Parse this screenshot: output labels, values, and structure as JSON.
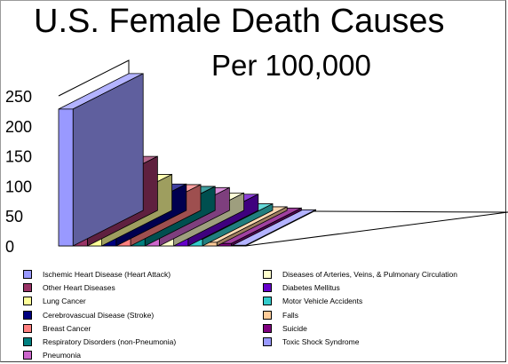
{
  "chart_data": {
    "type": "bar",
    "title": "U.S. Female Death Causes",
    "subtitle": "Per 100,000",
    "ylim": [
      0,
      250
    ],
    "yticks": [
      "0",
      "50",
      "100",
      "150",
      "200",
      "250"
    ],
    "series": [
      {
        "name": "Ischemic Heart Disease (Heart Attack)",
        "value": 228,
        "color": "#9999ff"
      },
      {
        "name": "Other Heart Diseases",
        "value": 90,
        "color": "#993366"
      },
      {
        "name": "Lung Cancer",
        "value": 60,
        "color": "#ffff99"
      },
      {
        "name": "Cerebrovascual Disease (Stroke)",
        "value": 44,
        "color": "#000080"
      },
      {
        "name": "Breast Cancer",
        "value": 43,
        "color": "#ff8080"
      },
      {
        "name": "Respiratory Disorders (non-Pneumonia)",
        "value": 40,
        "color": "#008080"
      },
      {
        "name": "Pneumonia",
        "value": 38,
        "color": "#cc66cc"
      },
      {
        "name": "Diseases of Arteries, Veins, & Pulmonary Circulation",
        "value": 29,
        "color": "#ffffcc"
      },
      {
        "name": "Diabetes Mellitus",
        "value": 27,
        "color": "#6600cc"
      },
      {
        "name": "Motor Vehicle Accidents",
        "value": 11,
        "color": "#33cccc"
      },
      {
        "name": "Falls",
        "value": 6,
        "color": "#ffcc99"
      },
      {
        "name": "Suicide",
        "value": 4,
        "color": "#800080"
      },
      {
        "name": "Toxic Shock Syndrome",
        "value": 1,
        "color": "#9999ff"
      }
    ]
  }
}
